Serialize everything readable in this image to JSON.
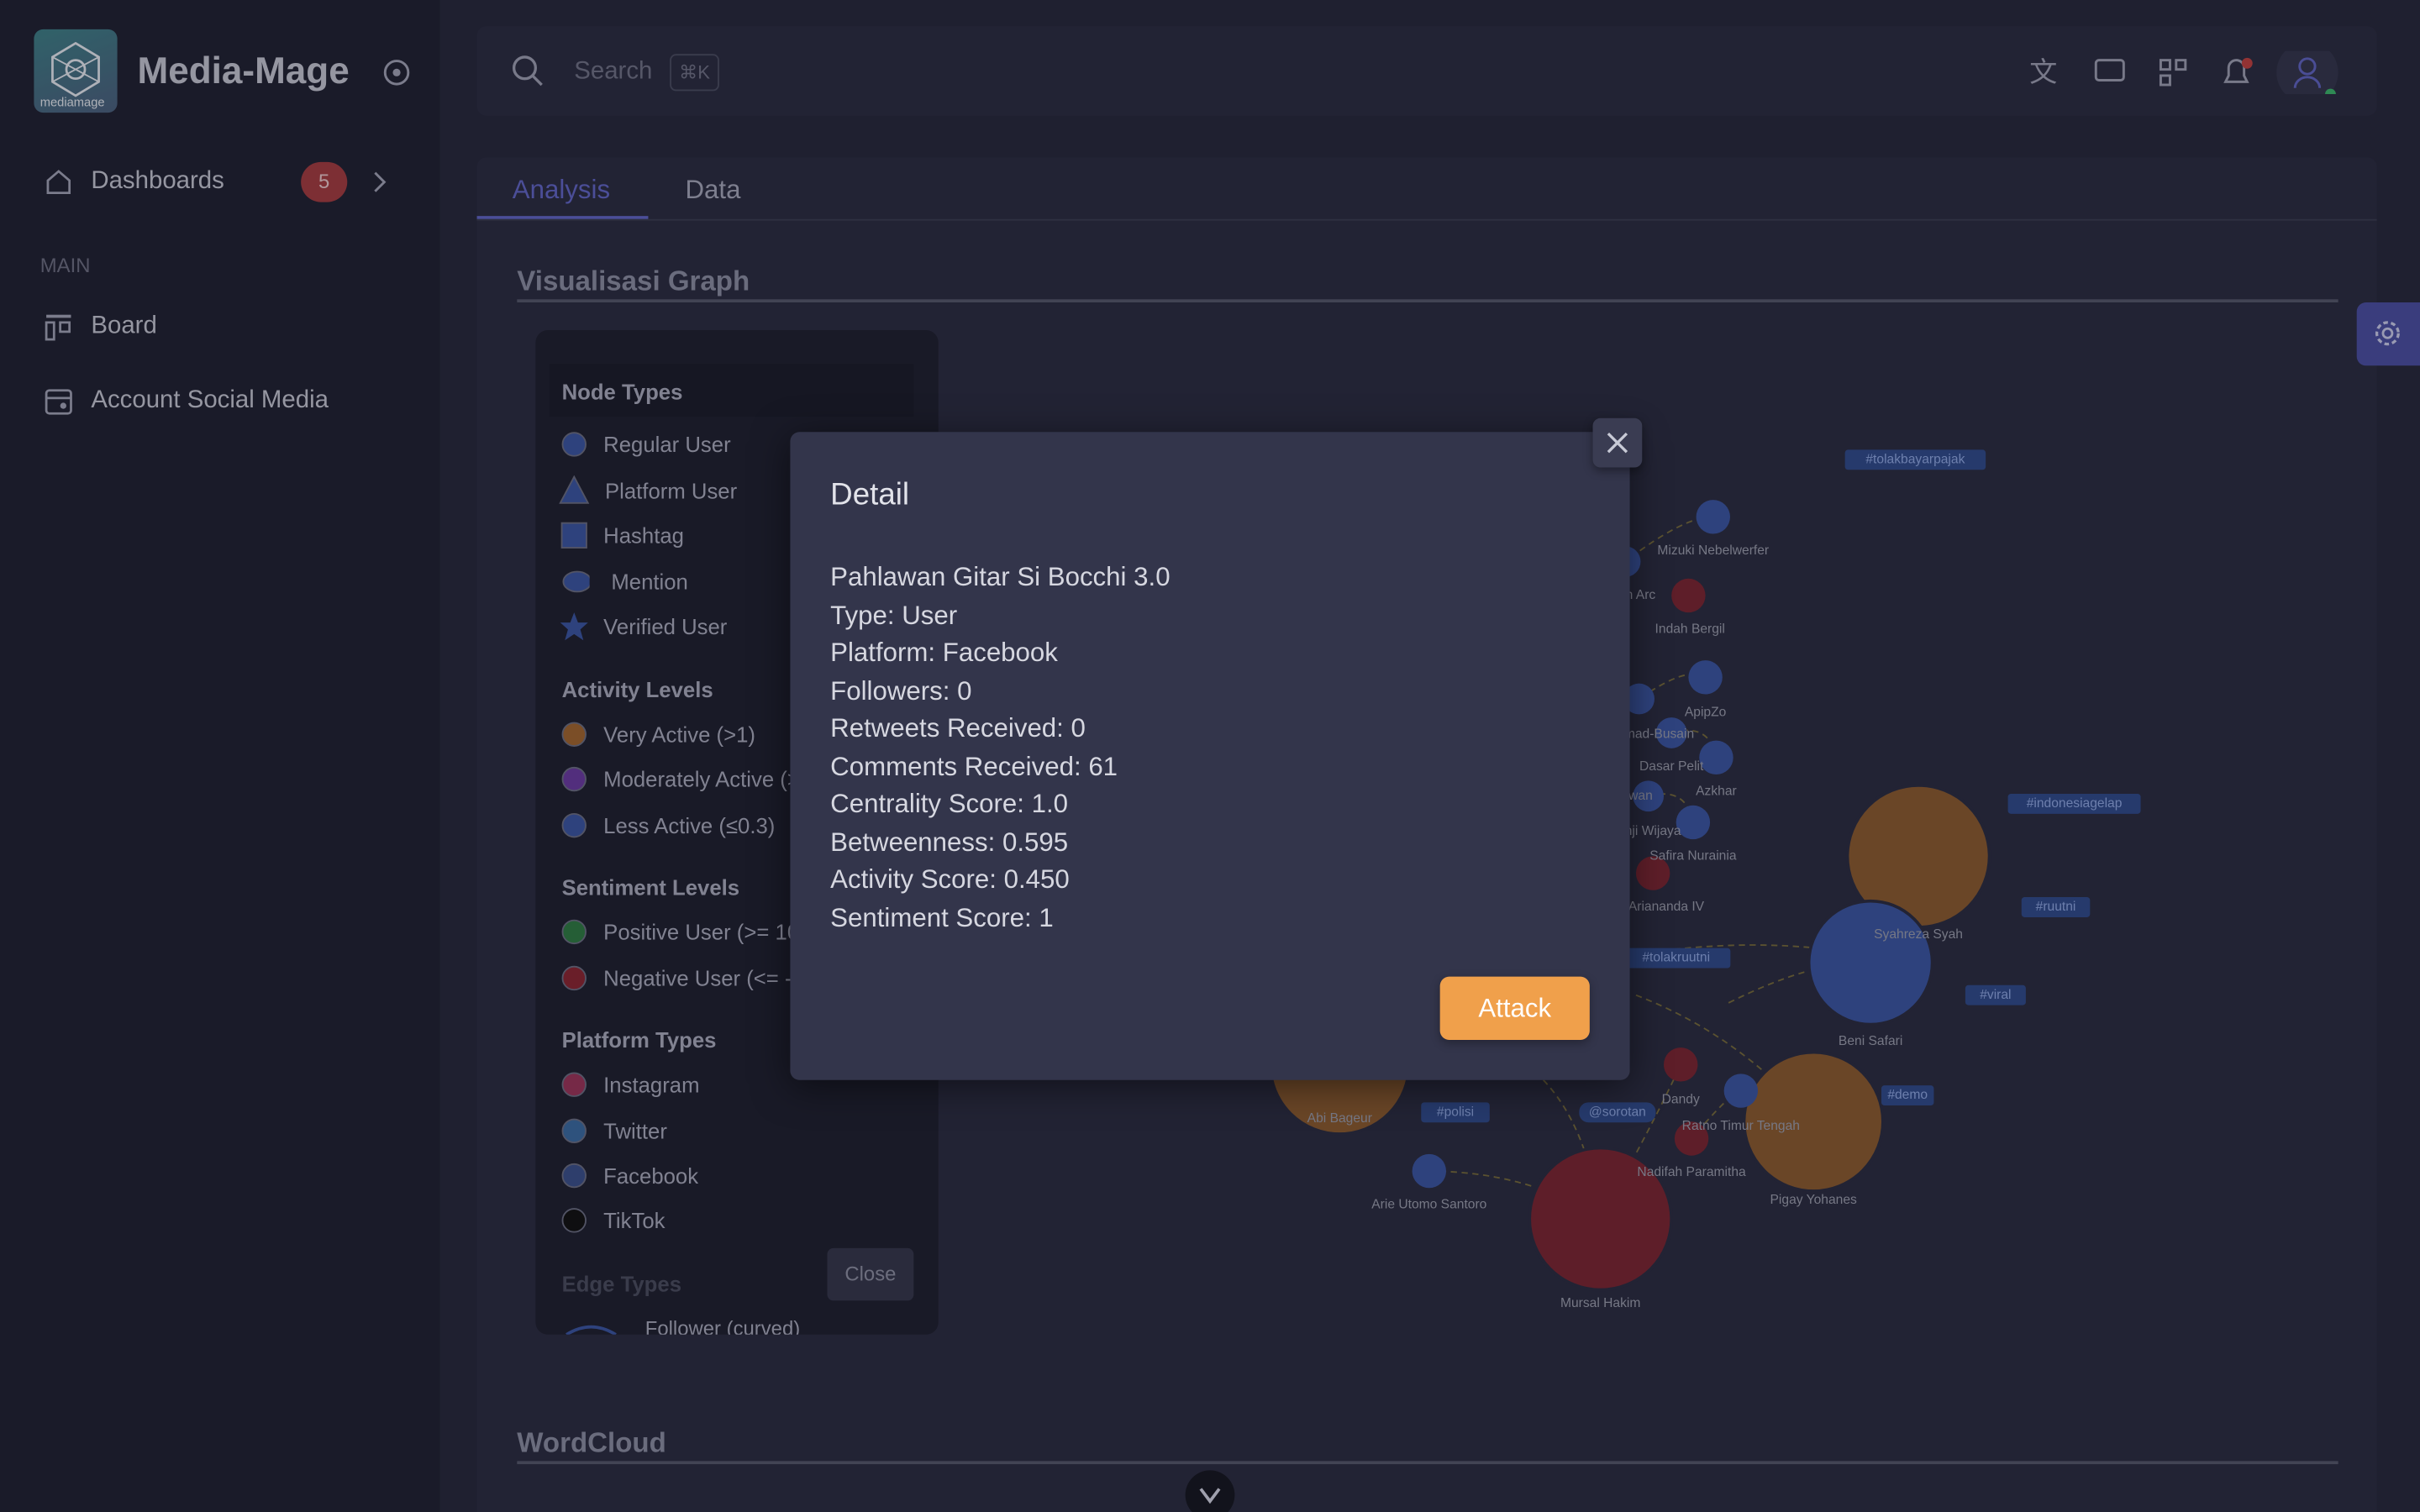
{
  "sidebar": {
    "brand": "Media-Mage",
    "logo_text": "mediamage",
    "nav": {
      "label": "Dashboards",
      "badge": 5
    },
    "section": "MAIN",
    "items": [
      "Board",
      "Account Social Media"
    ]
  },
  "topbar": {
    "search_placeholder": "Search",
    "shortcut": "⌘K"
  },
  "tabs": [
    "Analysis",
    "Data"
  ],
  "sections": [
    "Visualisasi Graph",
    "WordCloud"
  ],
  "legend": {
    "groups": [
      {
        "title": "Node Types",
        "items": [
          "Regular User",
          "Platform User",
          "Hashtag",
          "Mention",
          "Verified User"
        ]
      },
      {
        "title": "Activity Levels",
        "items": [
          "Very Active (>1)",
          "Moderately Active (>",
          "Less Active (≤0.3)"
        ]
      },
      {
        "title": "Sentiment Levels",
        "items": [
          "Positive User (>= 10",
          "Negative User (<= -1"
        ]
      },
      {
        "title": "Platform Types",
        "items": [
          "Instagram",
          "Twitter",
          "Facebook",
          "TikTok"
        ]
      }
    ],
    "edge_title": "Edge Types",
    "edge_item": "Follower (curved)",
    "close": "Close"
  },
  "graph_labels": [
    "#tolakbayarpajak",
    "Mizuki Nebelwerfer",
    "n Arc",
    "Indah Bergil",
    "ApipZo",
    "mad-Busain",
    "Dasar Pelit",
    "Azkhar",
    "wan",
    "nji Wijaya",
    "Safira Nurainia",
    "din Ariananda IV",
    "#indonesiagelap",
    "#ruutni",
    "Syahreza Syah",
    "#tolakruutni",
    "#viral",
    "Beni Safari",
    "#demo",
    "Dandy",
    "Ratno Timur Tengah",
    "Nadifah Paramitha",
    "Pigay Yohanes",
    "Abi Bageur",
    "#polisi",
    "@sorotan",
    "Arie Utomo Santoro",
    "Mursal Hakim"
  ],
  "modal": {
    "title": "Detail",
    "lines": [
      "Pahlawan Gitar Si Bocchi 3.0",
      "Type: User",
      "Platform: Facebook",
      "Followers: 0",
      "Retweets Received: 0",
      "Comments Received: 61",
      "Centrality Score: 1.0",
      "Betweenness: 0.595",
      "Activity Score: 0.450",
      "Sentiment Score: 1"
    ],
    "button": "Attack"
  }
}
